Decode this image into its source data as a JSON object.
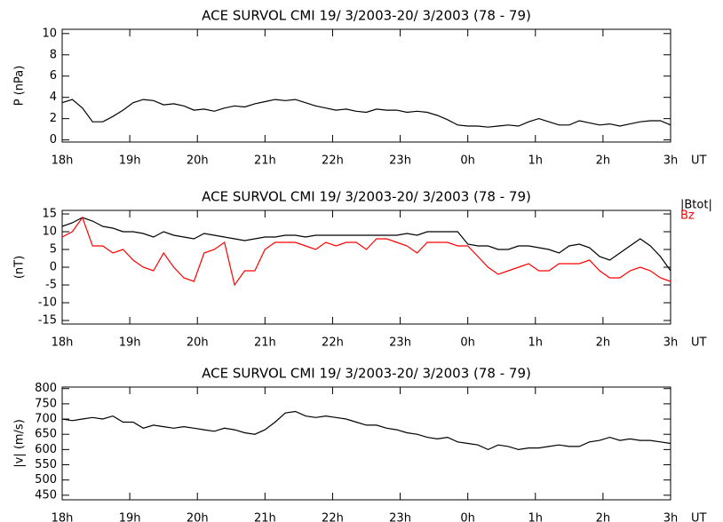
{
  "chart_data": [
    {
      "type": "line",
      "title": "ACE SURVOL CMI 19/ 3/2003-20/ 3/2003 (78 - 79)",
      "y_label": "P (nPa)",
      "x_label": "UT",
      "color": "#000000",
      "x": [
        18,
        18.15,
        18.3,
        18.45,
        18.6,
        18.75,
        18.9,
        19.05,
        19.2,
        19.35,
        19.5,
        19.65,
        19.8,
        19.95,
        20.1,
        20.25,
        20.4,
        20.55,
        20.7,
        20.85,
        21,
        21.15,
        21.3,
        21.45,
        21.6,
        21.75,
        21.9,
        22.05,
        22.2,
        22.35,
        22.5,
        22.65,
        22.8,
        22.95,
        23.1,
        23.25,
        23.4,
        23.55,
        23.7,
        23.85,
        24,
        24.15,
        24.3,
        24.45,
        24.6,
        24.75,
        24.9,
        25.05,
        25.2,
        25.35,
        25.5,
        25.65,
        25.8,
        25.95,
        26.1,
        26.25,
        26.4,
        26.55,
        26.7,
        26.85,
        27
      ],
      "values": [
        3.5,
        3.8,
        3.0,
        1.7,
        1.7,
        2.2,
        2.8,
        3.5,
        3.8,
        3.7,
        3.3,
        3.4,
        3.2,
        2.8,
        2.9,
        2.7,
        3.0,
        3.2,
        3.1,
        3.4,
        3.6,
        3.8,
        3.7,
        3.8,
        3.5,
        3.2,
        3.0,
        2.8,
        2.9,
        2.7,
        2.6,
        2.9,
        2.8,
        2.8,
        2.6,
        2.7,
        2.6,
        2.3,
        1.9,
        1.4,
        1.3,
        1.3,
        1.2,
        1.3,
        1.4,
        1.3,
        1.7,
        2.0,
        1.7,
        1.4,
        1.4,
        1.8,
        1.6,
        1.4,
        1.5,
        1.3,
        1.5,
        1.7,
        1.8,
        1.8,
        1.4
      ],
      "xlim": [
        18,
        27
      ],
      "xticks": [
        {
          "value": 18,
          "label": "18h"
        },
        {
          "value": 19,
          "label": "19h"
        },
        {
          "value": 20,
          "label": "20h"
        },
        {
          "value": 21,
          "label": "21h"
        },
        {
          "value": 22,
          "label": "22h"
        },
        {
          "value": 23,
          "label": "23h"
        },
        {
          "value": 24,
          "label": "0h"
        },
        {
          "value": 25,
          "label": "1h"
        },
        {
          "value": 26,
          "label": "2h"
        },
        {
          "value": 27,
          "label": "3h"
        }
      ],
      "ylim": [
        -0.2,
        10.4
      ],
      "yticks": [
        0,
        2,
        4,
        6,
        8,
        10
      ]
    },
    {
      "type": "line",
      "title": "ACE SURVOL CMI 19/ 3/2003-20/ 3/2003 (78 - 79)",
      "y_label": "(nT)",
      "x_label": "UT",
      "x": [
        18,
        18.15,
        18.3,
        18.45,
        18.6,
        18.75,
        18.9,
        19.05,
        19.2,
        19.35,
        19.5,
        19.65,
        19.8,
        19.95,
        20.1,
        20.25,
        20.4,
        20.55,
        20.7,
        20.85,
        21,
        21.15,
        21.3,
        21.45,
        21.6,
        21.75,
        21.9,
        22.05,
        22.2,
        22.35,
        22.5,
        22.65,
        22.8,
        22.95,
        23.1,
        23.25,
        23.4,
        23.55,
        23.7,
        23.85,
        24,
        24.15,
        24.3,
        24.45,
        24.6,
        24.75,
        24.9,
        25.05,
        25.2,
        25.35,
        25.5,
        25.65,
        25.8,
        25.95,
        26.1,
        26.25,
        26.4,
        26.55,
        26.7,
        26.85,
        27
      ],
      "series": [
        {
          "name": "|Btot|",
          "color": "#000000",
          "values": [
            11.5,
            12.5,
            14,
            13,
            11.5,
            11,
            10,
            10,
            9.5,
            8.5,
            10,
            9,
            8.5,
            8,
            9.5,
            9,
            8.5,
            8,
            7.5,
            8,
            8.5,
            8.5,
            9,
            9,
            8.5,
            9,
            9,
            9,
            9,
            9,
            9,
            9,
            9,
            9,
            9.5,
            9,
            10,
            10,
            10,
            10,
            6.5,
            6,
            6,
            5,
            5,
            6,
            6,
            5.5,
            5,
            4,
            6,
            6.5,
            5.5,
            3,
            2,
            4,
            6,
            8,
            6,
            3,
            -1
          ]
        },
        {
          "name": "Bz",
          "color": "#ff0000",
          "values": [
            8.5,
            10,
            14,
            6,
            6,
            4,
            5,
            2,
            0,
            -1,
            4,
            0,
            -3,
            -4,
            4,
            5,
            7,
            -5,
            -1,
            -1,
            5,
            7,
            7,
            7,
            6,
            5,
            7,
            6,
            7,
            7,
            5,
            8,
            8,
            7,
            6,
            4,
            7,
            7,
            7,
            6,
            6,
            3,
            0,
            -2,
            -1,
            0,
            1,
            -1,
            -1,
            1,
            1,
            1,
            2,
            -1,
            -3,
            -3,
            -1,
            0,
            -1,
            -3,
            -4
          ]
        }
      ],
      "xlim": [
        18,
        27
      ],
      "xticks": [
        {
          "value": 18,
          "label": "18h"
        },
        {
          "value": 19,
          "label": "19h"
        },
        {
          "value": 20,
          "label": "20h"
        },
        {
          "value": 21,
          "label": "21h"
        },
        {
          "value": 22,
          "label": "22h"
        },
        {
          "value": 23,
          "label": "23h"
        },
        {
          "value": 24,
          "label": "0h"
        },
        {
          "value": 25,
          "label": "1h"
        },
        {
          "value": 26,
          "label": "2h"
        },
        {
          "value": 27,
          "label": "3h"
        }
      ],
      "ylim": [
        -16,
        16
      ],
      "yticks": [
        -15,
        -10,
        -5,
        0,
        5,
        10,
        15
      ],
      "legend": "outside-top-right"
    },
    {
      "type": "line",
      "title": "ACE SURVOL CMI 19/ 3/2003-20/ 3/2003 (78 - 79)",
      "y_label": "|v| (m/s)",
      "x_label": "UT",
      "color": "#000000",
      "x": [
        18,
        18.15,
        18.3,
        18.45,
        18.6,
        18.75,
        18.9,
        19.05,
        19.2,
        19.35,
        19.5,
        19.65,
        19.8,
        19.95,
        20.1,
        20.25,
        20.4,
        20.55,
        20.7,
        20.85,
        21,
        21.15,
        21.3,
        21.45,
        21.6,
        21.75,
        21.9,
        22.05,
        22.2,
        22.35,
        22.5,
        22.65,
        22.8,
        22.95,
        23.1,
        23.25,
        23.4,
        23.55,
        23.7,
        23.85,
        24,
        24.15,
        24.3,
        24.45,
        24.6,
        24.75,
        24.9,
        25.05,
        25.2,
        25.35,
        25.5,
        25.65,
        25.8,
        25.95,
        26.1,
        26.25,
        26.4,
        26.55,
        26.7,
        26.85,
        27
      ],
      "values": [
        700,
        695,
        700,
        705,
        700,
        710,
        690,
        690,
        670,
        680,
        675,
        670,
        675,
        670,
        665,
        660,
        670,
        665,
        655,
        650,
        665,
        690,
        720,
        725,
        710,
        705,
        710,
        705,
        700,
        690,
        680,
        680,
        670,
        665,
        655,
        650,
        640,
        635,
        640,
        625,
        620,
        615,
        600,
        615,
        610,
        600,
        605,
        605,
        610,
        615,
        610,
        610,
        625,
        630,
        640,
        630,
        635,
        630,
        630,
        625,
        620
      ],
      "xlim": [
        18,
        27
      ],
      "xticks": [
        {
          "value": 18,
          "label": "18h"
        },
        {
          "value": 19,
          "label": "19h"
        },
        {
          "value": 20,
          "label": "20h"
        },
        {
          "value": 21,
          "label": "21h"
        },
        {
          "value": 22,
          "label": "22h"
        },
        {
          "value": 23,
          "label": "23h"
        },
        {
          "value": 24,
          "label": "0h"
        },
        {
          "value": 25,
          "label": "1h"
        },
        {
          "value": 26,
          "label": "2h"
        },
        {
          "value": 27,
          "label": "3h"
        }
      ],
      "ylim": [
        435,
        805
      ],
      "yticks": [
        450,
        500,
        550,
        600,
        650,
        700,
        750,
        800
      ]
    }
  ]
}
